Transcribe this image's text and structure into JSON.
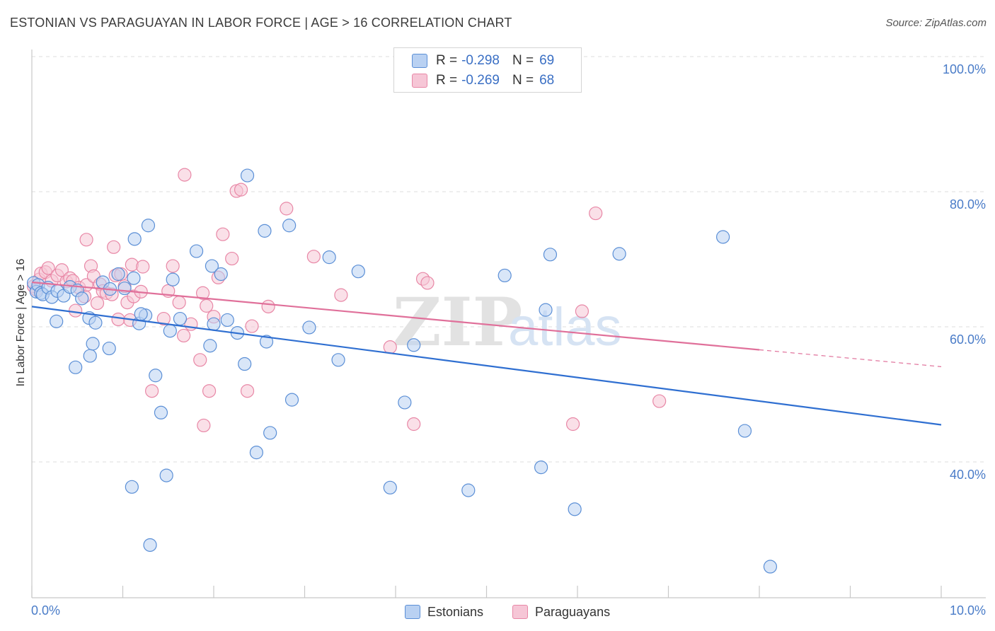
{
  "header": {
    "title": "ESTONIAN VS PARAGUAYAN IN LABOR FORCE | AGE > 16 CORRELATION CHART",
    "source": "Source: ZipAtlas.com"
  },
  "watermark": {
    "zip": "ZIP",
    "atlas": "atlas"
  },
  "legend": {
    "estonians": {
      "r_label": "R =",
      "r_value": "-0.298",
      "n_label": "N =",
      "n_value": "69",
      "color": "#5b8fd6"
    },
    "paraguayans": {
      "r_label": "R =",
      "r_value": "-0.269",
      "n_label": "N =",
      "n_value": "68",
      "color": "#e887a6"
    }
  },
  "bottom_legend": {
    "estonians": "Estonians",
    "paraguayans": "Paraguayans"
  },
  "chart_data": {
    "type": "scatter",
    "title": "ESTONIAN VS PARAGUAYAN IN LABOR FORCE | AGE > 16 CORRELATION CHART",
    "xlabel": "",
    "ylabel": "In Labor Force | Age > 16",
    "xlim": [
      0,
      10
    ],
    "ylim": [
      20,
      103
    ],
    "x_tick_labels": [
      "0.0%",
      "10.0%"
    ],
    "y_ticks": [
      40,
      60,
      80,
      100
    ],
    "y_tick_labels": [
      "40.0%",
      "60.0%",
      "80.0%",
      "100.0%"
    ],
    "grid": true,
    "series": [
      {
        "name": "Estonians",
        "color": "#5b8fd6",
        "fill": "#b9d1f2",
        "r": -0.298,
        "n": 69,
        "trend": {
          "x0": 0.0,
          "y0": 63.0,
          "x1": 10.0,
          "y1": 45.5
        },
        "points": [
          [
            0.02,
            66.5
          ],
          [
            0.05,
            65.2
          ],
          [
            0.07,
            66.2
          ],
          [
            0.1,
            65.0
          ],
          [
            0.12,
            64.8
          ],
          [
            0.18,
            65.8
          ],
          [
            0.22,
            64.4
          ],
          [
            0.28,
            65.3
          ],
          [
            0.35,
            64.6
          ],
          [
            0.42,
            65.9
          ],
          [
            0.5,
            65.4
          ],
          [
            0.55,
            64.2
          ],
          [
            0.63,
            61.3
          ],
          [
            0.7,
            60.6
          ],
          [
            0.78,
            66.6
          ],
          [
            0.86,
            65.6
          ],
          [
            0.95,
            67.8
          ],
          [
            1.02,
            65.7
          ],
          [
            1.18,
            60.5
          ],
          [
            1.25,
            61.7
          ],
          [
            0.27,
            60.8
          ],
          [
            0.48,
            54.0
          ],
          [
            0.64,
            55.7
          ],
          [
            0.67,
            57.5
          ],
          [
            0.85,
            56.8
          ],
          [
            1.12,
            67.2
          ],
          [
            1.13,
            73.0
          ],
          [
            1.2,
            61.9
          ],
          [
            1.28,
            75.0
          ],
          [
            1.36,
            52.8
          ],
          [
            1.42,
            47.3
          ],
          [
            1.48,
            38.0
          ],
          [
            1.52,
            59.4
          ],
          [
            1.55,
            67.0
          ],
          [
            1.63,
            61.2
          ],
          [
            1.81,
            71.2
          ],
          [
            1.96,
            57.2
          ],
          [
            1.98,
            69.0
          ],
          [
            2.0,
            60.4
          ],
          [
            2.08,
            67.8
          ],
          [
            2.15,
            61.0
          ],
          [
            2.26,
            59.1
          ],
          [
            2.34,
            54.5
          ],
          [
            2.37,
            82.4
          ],
          [
            2.47,
            41.4
          ],
          [
            2.56,
            74.2
          ],
          [
            2.58,
            57.8
          ],
          [
            2.62,
            44.3
          ],
          [
            2.83,
            75.0
          ],
          [
            2.86,
            49.2
          ],
          [
            3.05,
            59.9
          ],
          [
            3.27,
            70.3
          ],
          [
            3.37,
            55.1
          ],
          [
            3.59,
            68.2
          ],
          [
            3.94,
            36.2
          ],
          [
            4.1,
            48.8
          ],
          [
            4.2,
            57.3
          ],
          [
            4.8,
            35.8
          ],
          [
            5.2,
            67.6
          ],
          [
            5.6,
            39.2
          ],
          [
            5.65,
            62.5
          ],
          [
            5.7,
            70.7
          ],
          [
            5.97,
            33.0
          ],
          [
            6.46,
            70.8
          ],
          [
            7.6,
            73.3
          ],
          [
            7.84,
            44.6
          ],
          [
            8.12,
            24.5
          ],
          [
            1.1,
            36.3
          ],
          [
            1.3,
            27.7
          ]
        ]
      },
      {
        "name": "Paraguayans",
        "color": "#e887a6",
        "fill": "#f6c6d6",
        "r": -0.269,
        "n": 68,
        "trend": {
          "x0": 0.0,
          "y0": 66.6,
          "x1": 8.0,
          "y1": 56.6
        },
        "trend_dashed": {
          "x0": 8.0,
          "y0": 56.6,
          "x1": 10.0,
          "y1": 54.1
        },
        "points": [
          [
            0.02,
            66.0
          ],
          [
            0.05,
            65.5
          ],
          [
            0.08,
            67.0
          ],
          [
            0.1,
            67.9
          ],
          [
            0.15,
            68.1
          ],
          [
            0.18,
            68.7
          ],
          [
            0.22,
            66.8
          ],
          [
            0.28,
            67.6
          ],
          [
            0.33,
            68.4
          ],
          [
            0.38,
            66.7
          ],
          [
            0.42,
            67.2
          ],
          [
            0.45,
            66.8
          ],
          [
            0.48,
            62.4
          ],
          [
            0.52,
            65.8
          ],
          [
            0.58,
            64.5
          ],
          [
            0.6,
            66.2
          ],
          [
            0.65,
            69.0
          ],
          [
            0.68,
            67.5
          ],
          [
            0.72,
            63.5
          ],
          [
            0.75,
            66.3
          ],
          [
            0.78,
            65.3
          ],
          [
            0.82,
            65.0
          ],
          [
            0.88,
            64.8
          ],
          [
            0.92,
            67.6
          ],
          [
            0.95,
            61.1
          ],
          [
            0.98,
            67.8
          ],
          [
            1.02,
            66.0
          ],
          [
            1.05,
            63.6
          ],
          [
            1.08,
            61.0
          ],
          [
            1.1,
            69.2
          ],
          [
            1.12,
            64.5
          ],
          [
            1.2,
            65.2
          ],
          [
            1.22,
            68.9
          ],
          [
            1.32,
            50.5
          ],
          [
            1.45,
            61.2
          ],
          [
            1.5,
            65.3
          ],
          [
            1.55,
            69.0
          ],
          [
            1.62,
            63.6
          ],
          [
            1.67,
            58.7
          ],
          [
            1.68,
            82.5
          ],
          [
            1.75,
            60.4
          ],
          [
            1.85,
            55.1
          ],
          [
            1.88,
            65.0
          ],
          [
            1.89,
            45.4
          ],
          [
            1.92,
            63.1
          ],
          [
            1.95,
            50.5
          ],
          [
            2.0,
            61.5
          ],
          [
            2.05,
            67.3
          ],
          [
            2.1,
            73.7
          ],
          [
            2.2,
            70.1
          ],
          [
            2.25,
            80.1
          ],
          [
            2.3,
            80.3
          ],
          [
            2.37,
            50.5
          ],
          [
            2.42,
            60.1
          ],
          [
            2.6,
            63.0
          ],
          [
            2.8,
            77.5
          ],
          [
            3.1,
            70.4
          ],
          [
            3.4,
            64.7
          ],
          [
            3.94,
            57.0
          ],
          [
            4.2,
            45.6
          ],
          [
            4.3,
            67.1
          ],
          [
            4.35,
            66.5
          ],
          [
            5.95,
            45.6
          ],
          [
            6.05,
            62.3
          ],
          [
            6.2,
            76.8
          ],
          [
            6.9,
            49.0
          ],
          [
            0.6,
            72.9
          ],
          [
            0.9,
            71.8
          ]
        ]
      }
    ]
  }
}
